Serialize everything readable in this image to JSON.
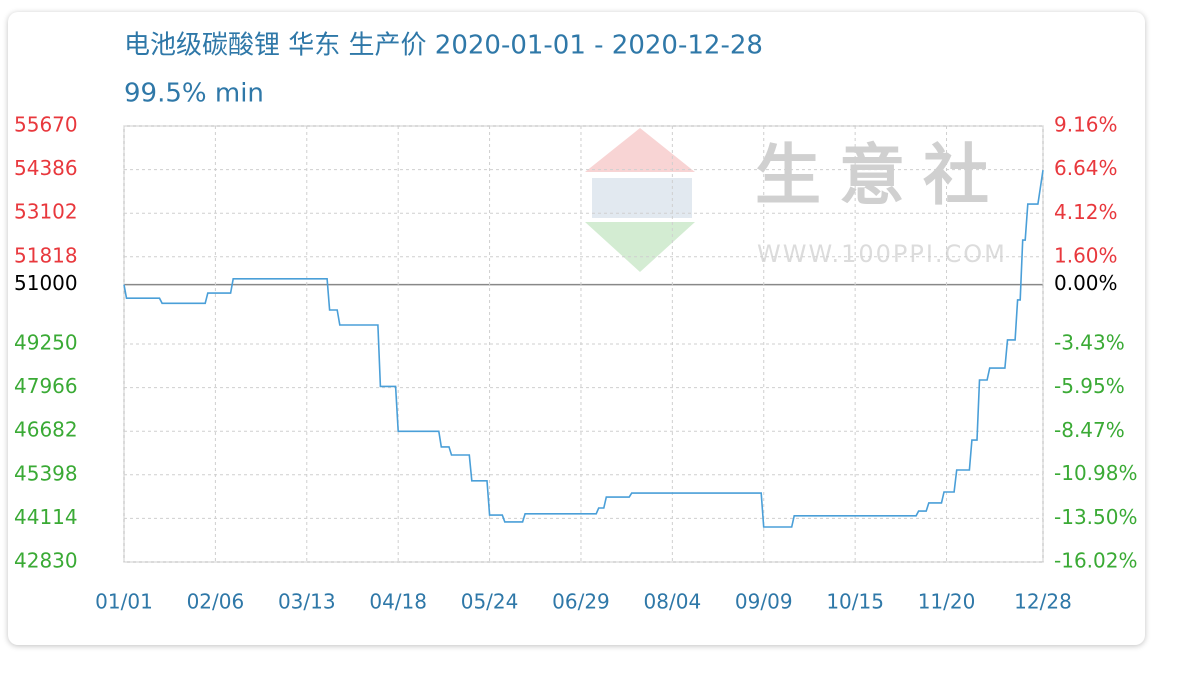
{
  "chart_data": {
    "type": "line",
    "title": "电池级碳酸锂 华东 生产价 2020-01-01 - 2020-12-28",
    "subtitle": "99.5% min",
    "watermark": "生意社",
    "watermark_url": "WWW.100PPI.COM",
    "baseline": 51000,
    "up_color": "#e8383d",
    "down_color": "#3aaa35",
    "base_color": "#000000",
    "grid": true,
    "xlim": [
      "01/01",
      "12/28"
    ],
    "xticks": [
      "01/01",
      "02/06",
      "03/13",
      "04/18",
      "05/24",
      "06/29",
      "08/04",
      "09/09",
      "10/15",
      "11/20",
      "12/28"
    ],
    "ylim": [
      42830,
      55670
    ],
    "yticks": [
      55670,
      54386,
      53102,
      51818,
      51000,
      49250,
      47966,
      46682,
      45398,
      44114,
      42830
    ],
    "y2lim": [
      -16.02,
      9.16
    ],
    "y2ticks": [
      {
        "value": 9.16,
        "label": "9.16%"
      },
      {
        "value": 6.64,
        "label": "6.64%"
      },
      {
        "value": 4.12,
        "label": "4.12%"
      },
      {
        "value": 1.6,
        "label": "1.60%"
      },
      {
        "value": 0,
        "label": "0.00%"
      },
      {
        "value": -3.43,
        "label": "-3.43%"
      },
      {
        "value": -5.95,
        "label": "-5.95%"
      },
      {
        "value": -8.47,
        "label": "-8.47%"
      },
      {
        "value": -10.98,
        "label": "-10.98%"
      },
      {
        "value": -13.5,
        "label": "-13.50%"
      },
      {
        "value": -16.02,
        "label": "-16.02%"
      }
    ],
    "x": [
      "01/01",
      "01/02",
      "01/15",
      "01/16",
      "02/02",
      "02/03",
      "02/12",
      "02/13",
      "03/21",
      "03/22",
      "03/25",
      "03/26",
      "04/10",
      "04/11",
      "04/17",
      "04/18",
      "05/04",
      "05/05",
      "05/08",
      "05/09",
      "05/16",
      "05/17",
      "05/23",
      "05/24",
      "05/29",
      "05/30",
      "06/06",
      "06/07",
      "07/05",
      "07/06",
      "07/08",
      "07/09",
      "07/18",
      "07/19",
      "09/08",
      "09/09",
      "09/20",
      "09/21",
      "11/08",
      "11/09",
      "11/12",
      "11/13",
      "11/18",
      "11/19",
      "11/23",
      "11/24",
      "11/29",
      "11/30",
      "12/02",
      "12/03",
      "12/06",
      "12/07",
      "12/13",
      "12/14",
      "12/17",
      "12/18",
      "12/19",
      "12/20",
      "12/21",
      "12/22",
      "12/26",
      "12/28"
    ],
    "series": [
      {
        "color": "#4a9fd8",
        "values": [
          51000,
          50600,
          50600,
          50450,
          50450,
          50750,
          50750,
          51170,
          51170,
          50250,
          50250,
          49810,
          49810,
          48000,
          48000,
          46680,
          46680,
          46220,
          46220,
          45980,
          45980,
          45220,
          45220,
          44210,
          44210,
          44010,
          44010,
          44250,
          44250,
          44420,
          44420,
          44740,
          44740,
          44860,
          44860,
          43860,
          43860,
          44190,
          44190,
          44330,
          44330,
          44570,
          44570,
          44890,
          44890,
          45540,
          45540,
          46420,
          46420,
          48190,
          48190,
          48540,
          48540,
          49370,
          49370,
          50550,
          50550,
          52310,
          52310,
          53370,
          53370,
          54370
        ]
      }
    ]
  }
}
